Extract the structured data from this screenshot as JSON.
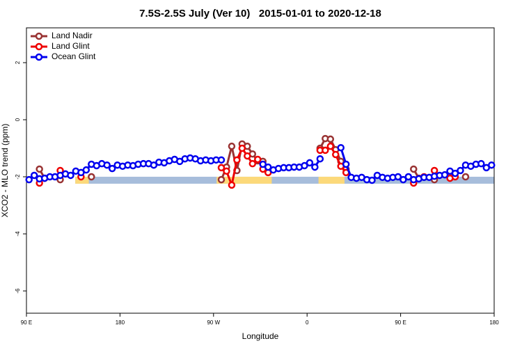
{
  "chart_data": {
    "type": "line",
    "title": "7.5S-2.5S July (Ver 10)   2015-01-01 to 2020-12-18",
    "x_label": "Longitude",
    "y_label": "XCO2 - MLO trend (ppm)",
    "xlim": [
      90,
      540
    ],
    "ylim": [
      -6.78,
      3.22
    ],
    "xticks": [
      {
        "value": 90,
        "label": "90 E"
      },
      180,
      {
        "value": 270,
        "label": "90 W"
      },
      {
        "value": 360,
        "label": "0"
      },
      {
        "value": 450,
        "label": "90 E"
      },
      {
        "value": 540,
        "label": "180"
      }
    ],
    "yticks": [
      2,
      0,
      -2,
      -4,
      -6
    ],
    "legend": "top-left",
    "surface_strip": {
      "y": -2.12,
      "segments": [
        {
          "xlim": [
            137,
            540
          ],
          "color": "#a7bddb"
        },
        {
          "xlim": [
            137,
            150
          ],
          "color": "#fcd97a"
        },
        {
          "xlim": [
            273,
            326
          ],
          "color": "#fcd97a"
        },
        {
          "xlim": [
            371,
            396
          ],
          "color": "#fcd97a"
        }
      ]
    },
    "x": [
      92.5,
      97.5,
      102.5,
      107.5,
      112.5,
      117.5,
      122.5,
      127.5,
      132.5,
      137.5,
      142.5,
      147.5,
      152.5,
      157.5,
      162.5,
      167.5,
      172.5,
      177.5,
      182.5,
      187.5,
      192.5,
      197.5,
      202.5,
      207.5,
      212.5,
      217.5,
      222.5,
      227.5,
      232.5,
      237.5,
      242.5,
      247.5,
      252.5,
      257.5,
      262.5,
      267.5,
      272.5,
      277.5,
      282.5,
      287.5,
      292.5,
      297.5,
      302.5,
      307.5,
      312.5,
      317.5,
      322.5,
      327.5,
      332.5,
      337.5,
      342.5,
      347.5,
      352.5,
      357.5,
      362.5,
      367.5,
      372.5,
      377.5,
      382.5,
      387.5,
      392.5,
      397.5,
      402.5,
      407.5,
      412.5,
      417.5,
      422.5,
      427.5,
      432.5,
      437.5,
      442.5,
      447.5,
      452.5,
      457.5,
      462.5,
      467.5,
      472.5,
      477.5,
      482.5,
      487.5,
      492.5,
      497.5,
      502.5,
      507.5,
      512.5,
      517.5,
      522.5,
      527.5,
      532.5,
      537.5
    ],
    "series": [
      {
        "name": "Land Nadir",
        "color": "#993333",
        "values": [
          null,
          null,
          -1.73,
          -2.05,
          null,
          null,
          -2.1,
          null,
          null,
          null,
          null,
          null,
          -2.0,
          null,
          null,
          null,
          null,
          null,
          null,
          null,
          null,
          null,
          null,
          null,
          null,
          null,
          null,
          null,
          null,
          null,
          null,
          null,
          null,
          null,
          null,
          null,
          null,
          -2.1,
          -1.66,
          -0.93,
          -1.78,
          -0.85,
          -0.93,
          -1.2,
          -1.44,
          -1.46,
          -1.78,
          null,
          null,
          null,
          null,
          null,
          null,
          null,
          null,
          null,
          -1.0,
          -0.66,
          -0.68,
          -1.05,
          -1.46,
          -1.73,
          null,
          null,
          null,
          null,
          null,
          null,
          null,
          null,
          null,
          null,
          null,
          null,
          -1.73,
          -2.05,
          null,
          null,
          -2.1,
          null,
          null,
          -1.98,
          null,
          null,
          -2.0,
          null,
          null,
          null,
          null,
          null
        ]
      },
      {
        "name": "Land Glint",
        "color": "#ee0000",
        "values": [
          null,
          null,
          -2.22,
          -2.05,
          null,
          null,
          -1.78,
          null,
          null,
          null,
          -2.0,
          null,
          null,
          null,
          null,
          null,
          null,
          null,
          null,
          null,
          null,
          null,
          null,
          null,
          null,
          null,
          null,
          null,
          null,
          null,
          null,
          null,
          null,
          null,
          null,
          null,
          null,
          -1.68,
          -1.8,
          -2.29,
          -1.41,
          -1.0,
          -1.27,
          -1.54,
          -1.39,
          -1.73,
          -1.85,
          null,
          null,
          null,
          null,
          null,
          null,
          null,
          null,
          null,
          -1.07,
          -1.07,
          -0.93,
          -1.22,
          -1.63,
          -1.85,
          null,
          null,
          null,
          null,
          null,
          null,
          null,
          null,
          null,
          null,
          null,
          null,
          -2.22,
          null,
          -2.0,
          null,
          -1.78,
          null,
          null,
          -2.05,
          -2.0,
          null,
          null,
          null,
          null,
          null,
          null,
          null
        ]
      },
      {
        "name": "Ocean Glint",
        "color": "#0000ee",
        "values": [
          -2.1,
          -1.95,
          -2.07,
          -2.05,
          -2.0,
          -2.0,
          -1.95,
          -1.9,
          -1.95,
          -1.8,
          -1.85,
          -1.76,
          -1.56,
          -1.61,
          -1.54,
          -1.59,
          -1.71,
          -1.59,
          -1.63,
          -1.59,
          -1.61,
          -1.56,
          -1.54,
          -1.54,
          -1.59,
          -1.49,
          -1.51,
          -1.44,
          -1.39,
          -1.46,
          -1.37,
          -1.34,
          -1.37,
          -1.44,
          -1.41,
          -1.44,
          -1.41,
          -1.41,
          null,
          null,
          null,
          null,
          null,
          null,
          null,
          -1.56,
          -1.66,
          -1.76,
          -1.71,
          -1.68,
          -1.68,
          -1.66,
          -1.66,
          -1.61,
          -1.51,
          -1.66,
          -1.37,
          null,
          null,
          null,
          -0.98,
          -1.56,
          -2.02,
          -2.05,
          -2.02,
          -2.1,
          -2.12,
          -1.95,
          -2.02,
          -2.05,
          -2.02,
          -2.0,
          -2.1,
          -2.0,
          -2.1,
          -2.07,
          -2.02,
          -2.02,
          -1.98,
          -1.95,
          -1.93,
          -1.8,
          -1.88,
          -1.78,
          -1.59,
          -1.63,
          -1.56,
          -1.54,
          -1.68,
          -1.59
        ]
      }
    ]
  }
}
